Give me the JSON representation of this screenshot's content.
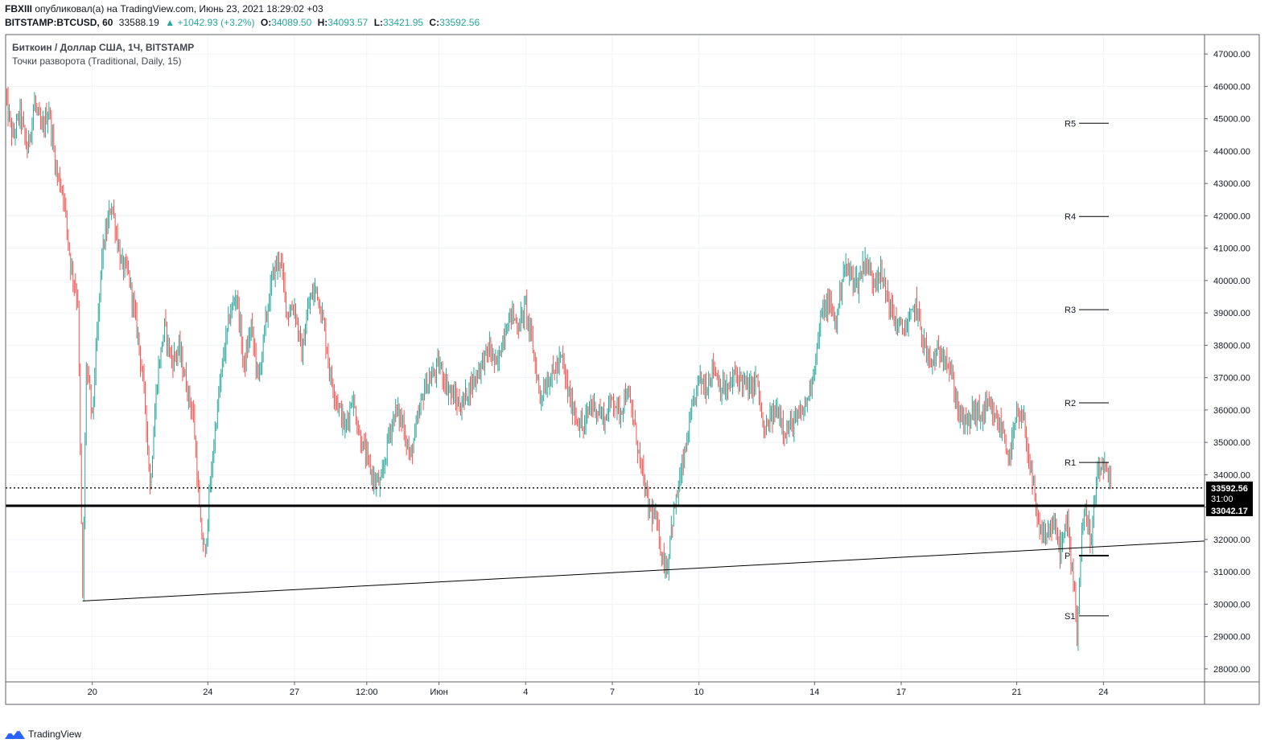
{
  "header": {
    "author": "FBXIII",
    "published_text": "опубликовал(а) на TradingView.com, Июнь 23, 2021 18:29:02 +03",
    "symbol": "BITSTAMP:BTCUSD, 60",
    "last": "33588.19",
    "change_arrow": "▲",
    "change": "+1042.93 (+3.2%)",
    "o_label": "O:",
    "o_value": "34089.50",
    "h_label": "H:",
    "h_value": "34093.57",
    "l_label": "L:",
    "l_value": "33421.95",
    "c_label": "C:",
    "c_value": "33592.56"
  },
  "legend": {
    "title": "Биткоин / Доллар США, 1Ч, BITSTAMP",
    "indicator": "Точки разворота (Traditional, Daily, 15)"
  },
  "footer": {
    "brand": "TradingView",
    "logo_icon": "tradingview-logo-icon"
  },
  "colors": {
    "up": "#26a69a",
    "down": "#ef5350",
    "line": "#000000",
    "grid": "#f0f3fa"
  },
  "chart_data": {
    "type": "candlestick",
    "y_range": [
      27600,
      47600
    ],
    "y_ticks": [
      28000,
      29000,
      30000,
      31000,
      32000,
      33000,
      34000,
      35000,
      36000,
      37000,
      38000,
      39000,
      40000,
      41000,
      42000,
      43000,
      44000,
      45000,
      46000,
      47000
    ],
    "y_tick_labels": [
      "28000.00",
      "29000.00",
      "30000.00",
      "31000.00",
      "32000.00",
      "33000.00",
      "34000.00",
      "35000.00",
      "36000.00",
      "37000.00",
      "38000.00",
      "39000.00",
      "40000.00",
      "41000.00",
      "42000.00",
      "43000.00",
      "44000.00",
      "45000.00",
      "46000.00",
      "47000.00"
    ],
    "x_range_hours": [
      0,
      996
    ],
    "x_ticks": [
      {
        "label": "20",
        "h": 72
      },
      {
        "label": "24",
        "h": 168
      },
      {
        "label": "27",
        "h": 240
      },
      {
        "label": "12:00",
        "h": 300
      },
      {
        "label": "Июн",
        "h": 360
      },
      {
        "label": "4",
        "h": 432
      },
      {
        "label": "7",
        "h": 504
      },
      {
        "label": "10",
        "h": 576
      },
      {
        "label": "14",
        "h": 672
      },
      {
        "label": "17",
        "h": 744
      },
      {
        "label": "21",
        "h": 840
      },
      {
        "label": "24",
        "h": 912
      }
    ],
    "price_path": [
      [
        0,
        45600
      ],
      [
        6,
        44400
      ],
      [
        12,
        45200
      ],
      [
        18,
        44000
      ],
      [
        24,
        45500
      ],
      [
        30,
        44600
      ],
      [
        36,
        45300
      ],
      [
        42,
        43400
      ],
      [
        48,
        42700
      ],
      [
        54,
        40500
      ],
      [
        60,
        39400
      ],
      [
        64,
        30100
      ],
      [
        67,
        37400
      ],
      [
        72,
        35800
      ],
      [
        80,
        40800
      ],
      [
        88,
        42400
      ],
      [
        96,
        40500
      ],
      [
        102,
        40200
      ],
      [
        110,
        38300
      ],
      [
        116,
        36200
      ],
      [
        120,
        33600
      ],
      [
        126,
        37000
      ],
      [
        132,
        38600
      ],
      [
        138,
        37500
      ],
      [
        144,
        37900
      ],
      [
        150,
        36800
      ],
      [
        156,
        35800
      ],
      [
        162,
        32300
      ],
      [
        166,
        31500
      ],
      [
        168,
        32800
      ],
      [
        174,
        35400
      ],
      [
        180,
        37400
      ],
      [
        186,
        38900
      ],
      [
        192,
        39600
      ],
      [
        198,
        37300
      ],
      [
        204,
        38600
      ],
      [
        210,
        36900
      ],
      [
        216,
        38700
      ],
      [
        222,
        40200
      ],
      [
        228,
        40700
      ],
      [
        234,
        39000
      ],
      [
        240,
        39200
      ],
      [
        246,
        37700
      ],
      [
        252,
        39300
      ],
      [
        258,
        39800
      ],
      [
        264,
        38700
      ],
      [
        270,
        37000
      ],
      [
        276,
        36200
      ],
      [
        282,
        35400
      ],
      [
        288,
        36400
      ],
      [
        294,
        35200
      ],
      [
        300,
        34500
      ],
      [
        306,
        33800
      ],
      [
        312,
        33700
      ],
      [
        318,
        35200
      ],
      [
        324,
        36000
      ],
      [
        330,
        35600
      ],
      [
        336,
        34500
      ],
      [
        342,
        35600
      ],
      [
        348,
        36700
      ],
      [
        354,
        37000
      ],
      [
        360,
        37400
      ],
      [
        366,
        36800
      ],
      [
        372,
        36400
      ],
      [
        378,
        36100
      ],
      [
        384,
        36600
      ],
      [
        390,
        37000
      ],
      [
        396,
        37500
      ],
      [
        402,
        37900
      ],
      [
        408,
        37300
      ],
      [
        414,
        38400
      ],
      [
        420,
        39000
      ],
      [
        426,
        38600
      ],
      [
        432,
        39200
      ],
      [
        438,
        37900
      ],
      [
        444,
        36400
      ],
      [
        450,
        36900
      ],
      [
        456,
        37200
      ],
      [
        462,
        37600
      ],
      [
        468,
        36400
      ],
      [
        474,
        35800
      ],
      [
        480,
        35400
      ],
      [
        486,
        36200
      ],
      [
        492,
        36000
      ],
      [
        498,
        35700
      ],
      [
        504,
        36400
      ],
      [
        510,
        35900
      ],
      [
        516,
        36600
      ],
      [
        522,
        35600
      ],
      [
        528,
        34200
      ],
      [
        534,
        33000
      ],
      [
        540,
        32600
      ],
      [
        546,
        31400
      ],
      [
        550,
        31100
      ],
      [
        552,
        32200
      ],
      [
        558,
        33400
      ],
      [
        564,
        34600
      ],
      [
        570,
        35900
      ],
      [
        576,
        37000
      ],
      [
        582,
        36700
      ],
      [
        588,
        37400
      ],
      [
        594,
        36700
      ],
      [
        600,
        36600
      ],
      [
        606,
        37100
      ],
      [
        612,
        36900
      ],
      [
        618,
        36600
      ],
      [
        624,
        37000
      ],
      [
        630,
        35200
      ],
      [
        636,
        35800
      ],
      [
        642,
        36000
      ],
      [
        648,
        35300
      ],
      [
        654,
        35600
      ],
      [
        660,
        35800
      ],
      [
        666,
        36300
      ],
      [
        672,
        37400
      ],
      [
        678,
        39000
      ],
      [
        684,
        39300
      ],
      [
        690,
        38700
      ],
      [
        696,
        40400
      ],
      [
        702,
        40200
      ],
      [
        708,
        39900
      ],
      [
        714,
        40700
      ],
      [
        720,
        40000
      ],
      [
        726,
        40300
      ],
      [
        732,
        39600
      ],
      [
        738,
        38800
      ],
      [
        744,
        38500
      ],
      [
        750,
        38600
      ],
      [
        756,
        39300
      ],
      [
        762,
        38200
      ],
      [
        768,
        37400
      ],
      [
        774,
        37700
      ],
      [
        780,
        37800
      ],
      [
        786,
        37000
      ],
      [
        792,
        35900
      ],
      [
        798,
        35500
      ],
      [
        804,
        36000
      ],
      [
        810,
        35800
      ],
      [
        816,
        36100
      ],
      [
        822,
        35700
      ],
      [
        828,
        35400
      ],
      [
        834,
        34500
      ],
      [
        840,
        35800
      ],
      [
        846,
        35600
      ],
      [
        852,
        34000
      ],
      [
        858,
        32300
      ],
      [
        864,
        32100
      ],
      [
        870,
        32500
      ],
      [
        876,
        31700
      ],
      [
        882,
        32500
      ],
      [
        888,
        30500
      ],
      [
        890,
        29000
      ],
      [
        894,
        32300
      ],
      [
        898,
        32900
      ],
      [
        902,
        31800
      ],
      [
        906,
        33800
      ],
      [
        912,
        34300
      ],
      [
        918,
        33600
      ]
    ],
    "support_line": {
      "from": {
        "h": 64,
        "price": 30100
      },
      "to": {
        "h": 996,
        "price": 31950
      }
    },
    "horizontal_level": {
      "price": 33042.17,
      "label": "33042.17"
    },
    "last_price": {
      "price": 33592.56,
      "label": "33592.56",
      "countdown": "31:00"
    },
    "pivots": [
      {
        "label": "R5",
        "price": 44860
      },
      {
        "label": "R4",
        "price": 41980
      },
      {
        "label": "R3",
        "price": 39100
      },
      {
        "label": "R2",
        "price": 36220
      },
      {
        "label": "R1",
        "price": 34380
      },
      {
        "label": "P",
        "price": 31500
      },
      {
        "label": "S1",
        "price": 29640
      }
    ]
  }
}
